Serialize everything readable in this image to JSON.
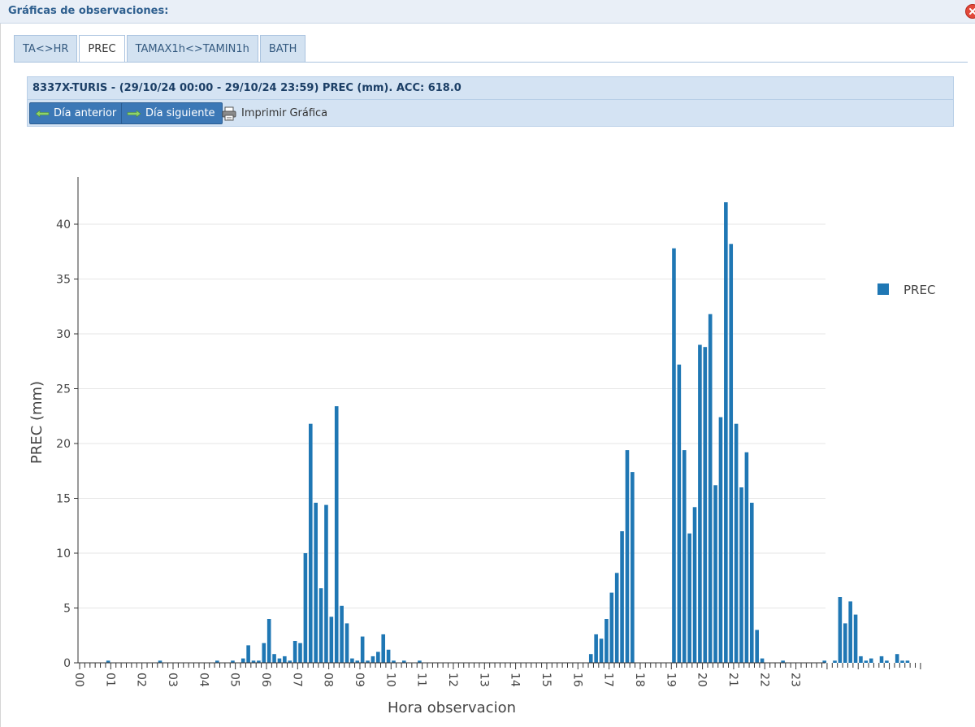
{
  "window": {
    "title": "Gráficas de observaciones:"
  },
  "tabs": [
    {
      "label": "TA<>HR",
      "active": false
    },
    {
      "label": "PREC",
      "active": true
    },
    {
      "label": "TAMAX1h<>TAMIN1h",
      "active": false
    },
    {
      "label": "BATH",
      "active": false
    }
  ],
  "header": {
    "title": "8337X-TURIS - (29/10/24 00:00 - 29/10/24 23:59) PREC (mm). ACC: 618.0"
  },
  "toolbar": {
    "prev_label": "Día anterior",
    "next_label": "Día siguiente",
    "print_label": "Imprimir Gráfica"
  },
  "colors": {
    "bar": "#1f77b4",
    "accent": "#3c78b6"
  },
  "chart_data": {
    "type": "bar",
    "xlabel": "Hora observacion",
    "ylabel": "PREC (mm)",
    "ylim": [
      0,
      44
    ],
    "yticks": [
      0,
      5,
      10,
      15,
      20,
      25,
      30,
      35,
      40
    ],
    "xticks": [
      "00",
      "01",
      "02",
      "03",
      "04",
      "05",
      "06",
      "07",
      "08",
      "09",
      "10",
      "11",
      "12",
      "13",
      "14",
      "15",
      "16",
      "17",
      "18",
      "19",
      "20",
      "21",
      "22",
      "23"
    ],
    "interval_minutes": 10,
    "grid": true,
    "legend": "right",
    "series": [
      {
        "name": "PREC",
        "values": [
          0,
          0,
          0,
          0,
          0,
          0.2,
          0,
          0,
          0,
          0,
          0,
          0,
          0,
          0,
          0,
          0.2,
          0,
          0,
          0,
          0,
          0,
          0,
          0,
          0,
          0,
          0,
          0.2,
          0,
          0,
          0.2,
          0,
          0.4,
          1.6,
          0.2,
          0.2,
          1.8,
          4.0,
          0.8,
          0.4,
          0.6,
          0.2,
          2.0,
          1.8,
          10.0,
          21.8,
          14.6,
          6.8,
          14.4,
          4.2,
          23.4,
          5.2,
          3.6,
          0.4,
          0.2,
          2.4,
          0.2,
          0.6,
          1.0,
          2.6,
          1.2,
          0.2,
          0,
          0.2,
          0,
          0,
          0.2,
          0,
          0,
          0,
          0,
          0,
          0,
          0,
          0,
          0,
          0,
          0,
          0,
          0,
          0,
          0,
          0,
          0,
          0,
          0,
          0,
          0,
          0,
          0,
          0,
          0,
          0,
          0,
          0,
          0,
          0,
          0,
          0,
          0.8,
          2.6,
          2.2,
          4.0,
          6.4,
          8.2,
          12.0,
          19.4,
          17.4,
          0,
          0,
          0,
          0,
          0,
          0,
          0,
          37.8,
          27.2,
          19.4,
          11.8,
          14.2,
          29.0,
          28.8,
          31.8,
          16.2,
          22.4,
          42.0,
          38.2,
          21.8,
          16.0,
          19.2,
          14.6,
          3.0,
          0.4,
          0,
          0,
          0,
          0.2,
          0,
          0,
          0,
          0,
          0,
          0,
          0,
          0.2,
          0,
          0.2,
          6.0,
          3.6,
          5.6,
          4.4,
          0.6,
          0.2,
          0.4,
          0,
          0.6,
          0.2,
          0,
          0.8,
          0.2,
          0.2,
          0,
          0
        ]
      }
    ]
  }
}
